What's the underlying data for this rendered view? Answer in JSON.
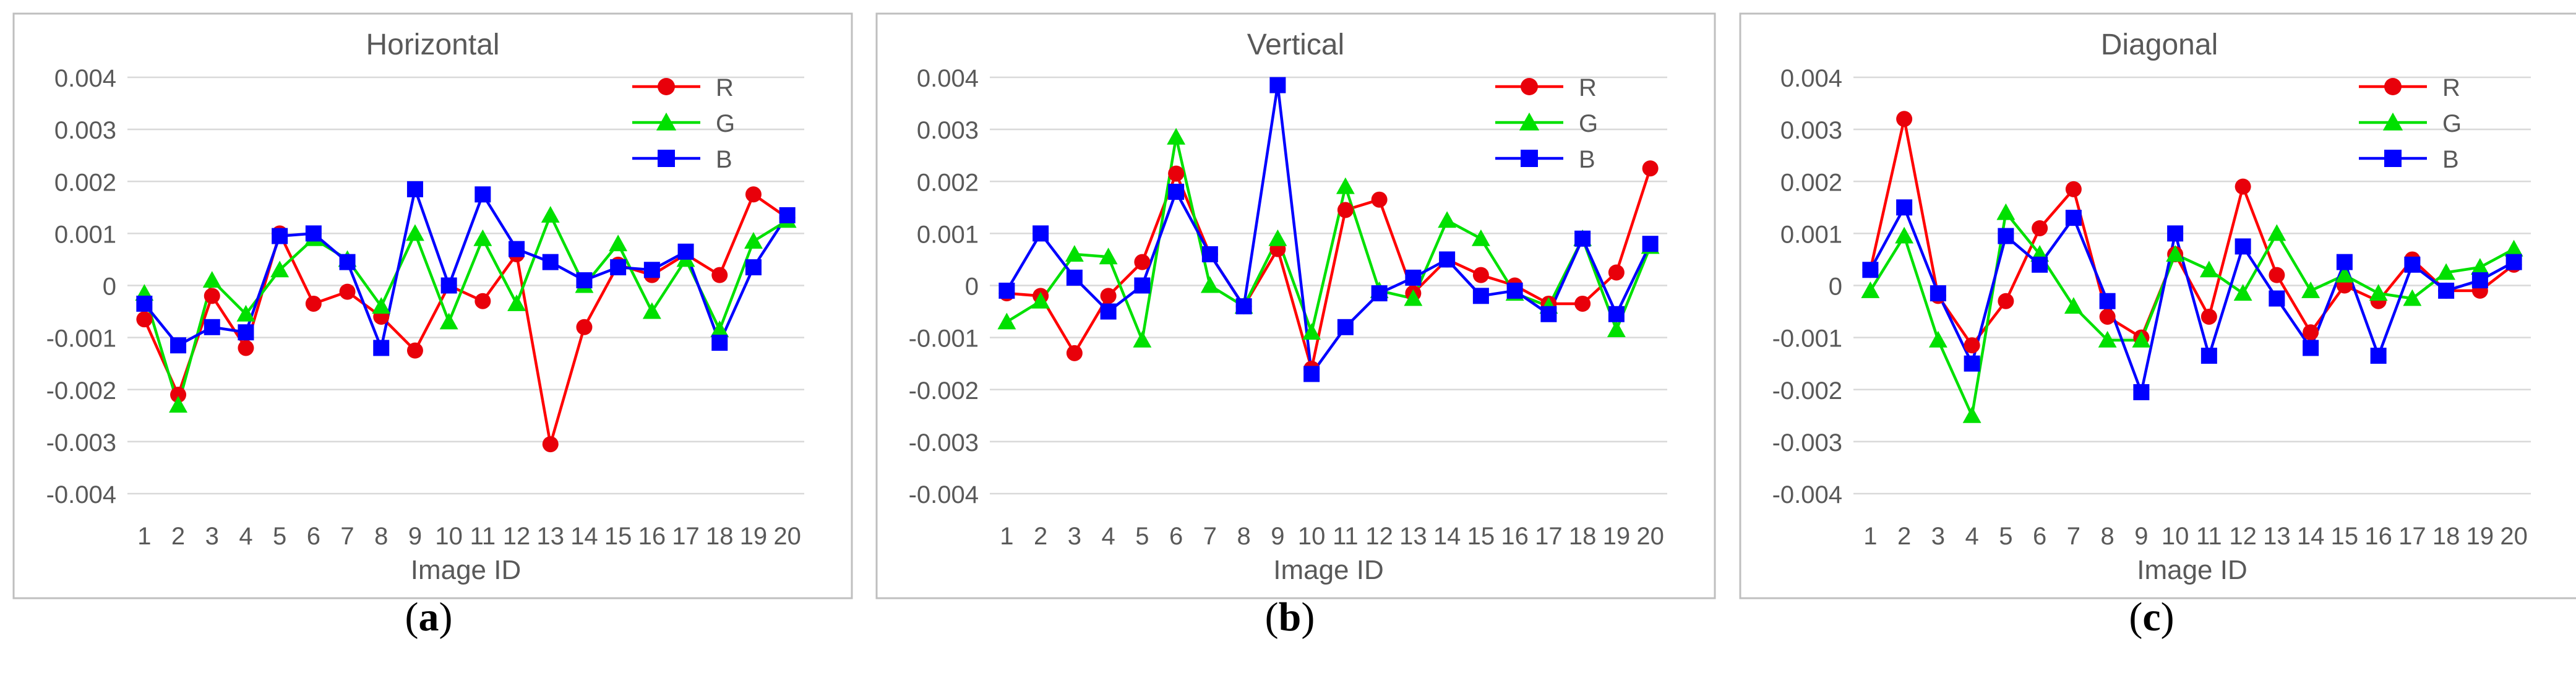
{
  "figure": {
    "captions": [
      "a",
      "b",
      "c"
    ]
  },
  "colors": {
    "R": "#ff0000",
    "G": "#00e000",
    "B": "#0000ff",
    "markerR": "#e8000a",
    "grid": "#d9d9d9",
    "frame": "#bfbfbf",
    "text": "#595959"
  },
  "chart_data": [
    {
      "type": "line",
      "title": "Horizontal",
      "xlabel": "Image ID",
      "ylabel": "",
      "categories": [
        "1",
        "2",
        "3",
        "4",
        "5",
        "6",
        "7",
        "8",
        "9",
        "10",
        "11",
        "12",
        "13",
        "14",
        "15",
        "16",
        "17",
        "18",
        "19",
        "20"
      ],
      "ylim": [
        -0.004,
        0.004
      ],
      "yticks": [
        "0.004",
        "0.003",
        "0.002",
        "0.001",
        "0",
        "-0.001",
        "-0.002",
        "-0.003",
        "-0.004"
      ],
      "grid": true,
      "legend": "top-right",
      "series": [
        {
          "name": "R",
          "marker": "circle",
          "values": [
            -0.00065,
            -0.0021,
            -0.0002,
            -0.0012,
            0.001,
            -0.00035,
            -0.00012,
            -0.0006,
            -0.00125,
            0.0,
            -0.0003,
            0.0006,
            -0.00305,
            -0.0008,
            0.0004,
            0.0002,
            0.0006,
            0.0002,
            0.00175,
            0.0013
          ]
        },
        {
          "name": "G",
          "marker": "triangle",
          "values": [
            -0.00015,
            -0.0023,
            0.0001,
            -0.00055,
            0.0003,
            0.0009,
            0.0005,
            -0.0004,
            0.001,
            -0.0007,
            0.0009,
            -0.00035,
            0.00135,
            0.0,
            0.0008,
            -0.0005,
            0.0005,
            -0.00085,
            0.00085,
            0.00125
          ]
        },
        {
          "name": "B",
          "marker": "square",
          "values": [
            -0.00035,
            -0.00115,
            -0.0008,
            -0.0009,
            0.00095,
            0.001,
            0.00045,
            -0.0012,
            0.00185,
            0.0,
            0.00175,
            0.0007,
            0.00045,
            0.0001,
            0.00035,
            0.0003,
            0.00065,
            -0.0011,
            0.00035,
            0.00135
          ]
        }
      ]
    },
    {
      "type": "line",
      "title": "Vertical",
      "xlabel": "Image ID",
      "ylabel": "",
      "categories": [
        "1",
        "2",
        "3",
        "4",
        "5",
        "6",
        "7",
        "8",
        "9",
        "10",
        "11",
        "12",
        "13",
        "14",
        "15",
        "16",
        "17",
        "18",
        "19",
        "20"
      ],
      "ylim": [
        -0.004,
        0.004
      ],
      "yticks": [
        "0.004",
        "0.003",
        "0.002",
        "0.001",
        "0",
        "-0.001",
        "-0.002",
        "-0.003",
        "-0.004"
      ],
      "grid": true,
      "legend": "top-right",
      "series": [
        {
          "name": "R",
          "marker": "circle",
          "values": [
            -0.00015,
            -0.0002,
            -0.0013,
            -0.0002,
            0.00045,
            0.00215,
            0.0006,
            -0.0004,
            0.0007,
            -0.0016,
            0.00145,
            0.00165,
            -0.00015,
            0.0005,
            0.0002,
            0.0,
            -0.00035,
            -0.00035,
            0.00025,
            0.00225
          ]
        },
        {
          "name": "G",
          "marker": "triangle",
          "values": [
            -0.0007,
            -0.0003,
            0.0006,
            0.00055,
            -0.00105,
            0.00285,
            0.0,
            -0.0004,
            0.0009,
            -0.0009,
            0.0019,
            -0.0001,
            -0.00025,
            0.00125,
            0.0009,
            -0.00015,
            -0.0004,
            0.0009,
            -0.00085,
            0.00075
          ]
        },
        {
          "name": "B",
          "marker": "square",
          "values": [
            -0.0001,
            0.001,
            0.00015,
            -0.0005,
            0.0,
            0.0018,
            0.0006,
            -0.0004,
            0.00385,
            -0.0017,
            -0.0008,
            -0.00015,
            0.00015,
            0.0005,
            -0.0002,
            -0.0001,
            -0.00055,
            0.0009,
            -0.00055,
            0.0008
          ]
        }
      ]
    },
    {
      "type": "line",
      "title": "Diagonal",
      "xlabel": "Image ID",
      "ylabel": "",
      "categories": [
        "1",
        "2",
        "3",
        "4",
        "5",
        "6",
        "7",
        "8",
        "9",
        "10",
        "11",
        "12",
        "13",
        "14",
        "15",
        "16",
        "17",
        "18",
        "19",
        "20"
      ],
      "ylim": [
        -0.004,
        0.004
      ],
      "yticks": [
        "0.004",
        "0.003",
        "0.002",
        "0.001",
        "0",
        "-0.001",
        "-0.002",
        "-0.003",
        "-0.004"
      ],
      "grid": true,
      "legend": "top-right",
      "series": [
        {
          "name": "R",
          "marker": "circle",
          "values": [
            0.0003,
            0.0032,
            -0.0002,
            -0.00115,
            -0.0003,
            0.0011,
            0.00185,
            -0.0006,
            -0.001,
            0.0006,
            -0.0006,
            0.0019,
            0.0002,
            -0.0009,
            0.0,
            -0.0003,
            0.0005,
            -0.0001,
            -0.0001,
            0.0004
          ]
        },
        {
          "name": "G",
          "marker": "triangle",
          "values": [
            -0.0001,
            0.00095,
            -0.00105,
            -0.0025,
            0.0014,
            0.0006,
            -0.0004,
            -0.00105,
            -0.00105,
            0.0006,
            0.0003,
            -0.00015,
            0.001,
            -0.0001,
            0.0002,
            -0.00015,
            -0.00025,
            0.00025,
            0.00035,
            0.0007
          ]
        },
        {
          "name": "B",
          "marker": "square",
          "values": [
            0.0003,
            0.0015,
            -0.00015,
            -0.0015,
            0.00095,
            0.0004,
            0.0013,
            -0.0003,
            -0.00205,
            0.001,
            -0.00135,
            0.00075,
            -0.00025,
            -0.0012,
            0.00045,
            -0.00135,
            0.0004,
            -0.0001,
            0.0001,
            0.00045
          ]
        }
      ]
    }
  ]
}
